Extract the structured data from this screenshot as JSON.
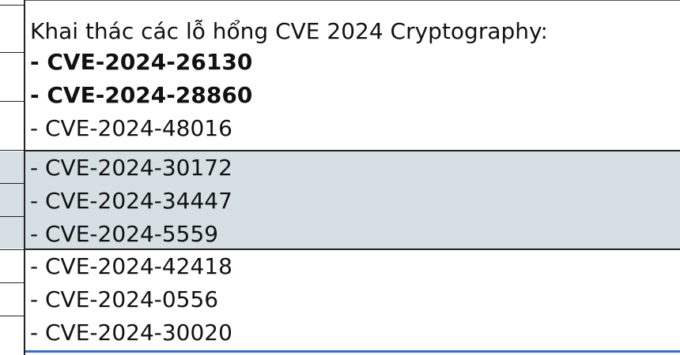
{
  "cell_top": {
    "title": "Khai thác các lỗ hổng CVE 2024 Cryptography:",
    "items": [
      "- CVE-2024-26130",
      "- CVE-2024-28860",
      "- CVE-2024-48016"
    ]
  },
  "cell_middle": {
    "items": [
      "- CVE-2024-30172",
      "- CVE-2024-34447",
      "- CVE-2024-5559"
    ]
  },
  "cell_bottom": {
    "items": [
      "- CVE-2024-42418",
      "- CVE-2024-0556",
      "- CVE-2024-30020"
    ]
  },
  "colors": {
    "shaded_row": "#d5dfe4",
    "selection": "#2f6fd8"
  }
}
